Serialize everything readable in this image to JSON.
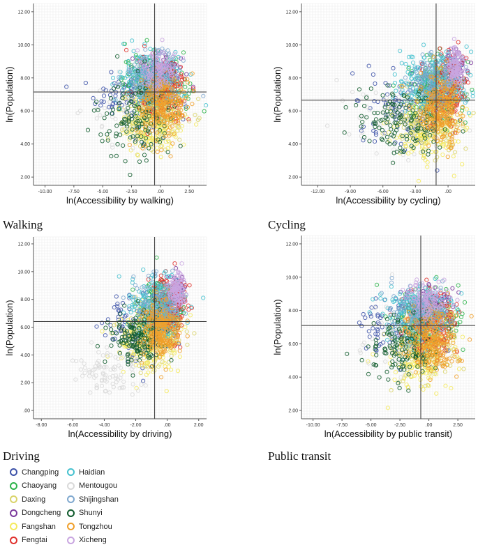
{
  "panels": [
    {
      "caption": "Walking"
    },
    {
      "caption": "Cycling"
    },
    {
      "caption": "Driving"
    },
    {
      "caption": "Public transit"
    }
  ],
  "legend": {
    "title": "",
    "items": [
      {
        "label": "Changping",
        "color": "#3d52a8"
      },
      {
        "label": "Chaoyang",
        "color": "#2db34a"
      },
      {
        "label": "Daxing",
        "color": "#d9d46b"
      },
      {
        "label": "Dongcheng",
        "color": "#7b3a9c"
      },
      {
        "label": "Fangshan",
        "color": "#f5ea5e"
      },
      {
        "label": "Fengtai",
        "color": "#e0312d"
      },
      {
        "label": "Haidian",
        "color": "#45c1cf"
      },
      {
        "label": "Mentougou",
        "color": "#d9d9d9"
      },
      {
        "label": "Shijingshan",
        "color": "#7fa8cf"
      },
      {
        "label": "Shunyi",
        "color": "#0f5a2c"
      },
      {
        "label": "Tongzhou",
        "color": "#f0a02c"
      },
      {
        "label": "Xicheng",
        "color": "#c9a6e0"
      }
    ]
  },
  "chart_data": [
    {
      "type": "scatter",
      "title": "",
      "xlabel": "ln(Accessibility by walking)",
      "ylabel": "ln(Population)",
      "xlim": [
        -11,
        4
      ],
      "ylim": [
        1.5,
        12.5
      ],
      "xticks": [
        -10,
        -7.5,
        -5,
        -2.5,
        0,
        2.5
      ],
      "xtick_labels": [
        "-10.00",
        "-7.50",
        "-5.00",
        "-2.50",
        ".00",
        "2.50"
      ],
      "yticks": [
        2,
        4,
        6,
        8,
        10,
        12
      ],
      "ytick_labels": [
        "2.00",
        "4.00",
        "6.00",
        "8.00",
        "10.00",
        "12.00"
      ],
      "grid": true,
      "reference_lines": {
        "x": -0.5,
        "y": 7.15
      },
      "series": [
        {
          "name": "Changping",
          "cloud": {
            "cx": -2.2,
            "cy": 7.1,
            "sx": 1.7,
            "sy": 1.0,
            "n": 130
          }
        },
        {
          "name": "Chaoyang",
          "cloud": {
            "cx": -0.4,
            "cy": 7.6,
            "sx": 1.4,
            "sy": 0.9,
            "n": 200
          }
        },
        {
          "name": "Daxing",
          "cloud": {
            "cx": -0.5,
            "cy": 5.6,
            "sx": 1.4,
            "sy": 1.0,
            "n": 160
          }
        },
        {
          "name": "Dongcheng",
          "cloud": {
            "cx": 0.2,
            "cy": 8.5,
            "sx": 0.9,
            "sy": 0.5,
            "n": 90
          }
        },
        {
          "name": "Fangshan",
          "cloud": {
            "cx": -0.6,
            "cy": 5.3,
            "sx": 1.4,
            "sy": 1.0,
            "n": 160
          }
        },
        {
          "name": "Fengtai",
          "cloud": {
            "cx": 0.2,
            "cy": 7.3,
            "sx": 1.0,
            "sy": 0.9,
            "n": 180
          }
        },
        {
          "name": "Haidian",
          "cloud": {
            "cx": -0.8,
            "cy": 7.9,
            "sx": 1.4,
            "sy": 0.9,
            "n": 220
          }
        },
        {
          "name": "Mentougou",
          "cloud": {
            "cx": -2.6,
            "cy": 6.2,
            "sx": 2.0,
            "sy": 1.1,
            "n": 60
          }
        },
        {
          "name": "Shijingshan",
          "cloud": {
            "cx": -0.6,
            "cy": 8.0,
            "sx": 1.2,
            "sy": 0.8,
            "n": 130
          }
        },
        {
          "name": "Shunyi",
          "cloud": {
            "cx": -2.0,
            "cy": 5.7,
            "sx": 1.6,
            "sy": 1.1,
            "n": 130
          }
        },
        {
          "name": "Tongzhou",
          "cloud": {
            "cx": 0.3,
            "cy": 6.3,
            "sx": 1.0,
            "sy": 1.0,
            "n": 240
          }
        },
        {
          "name": "Xicheng",
          "cloud": {
            "cx": -0.1,
            "cy": 8.6,
            "sx": 0.8,
            "sy": 0.6,
            "n": 110
          }
        }
      ]
    },
    {
      "type": "scatter",
      "title": "",
      "xlabel": "ln(Accessibility by cycling)",
      "ylabel": "ln(Population)",
      "xlim": [
        -13.5,
        2.5
      ],
      "ylim": [
        1.5,
        12.5
      ],
      "xticks": [
        -12,
        -9,
        -6,
        -3,
        0
      ],
      "xtick_labels": [
        "-12.00",
        "-9.00",
        "-6.00",
        "-3.00",
        ".00"
      ],
      "yticks": [
        2,
        4,
        6,
        8,
        10,
        12
      ],
      "ytick_labels": [
        "2.00",
        "4.00",
        "6.00",
        "8.00",
        "10.00",
        "12.00"
      ],
      "grid": true,
      "reference_lines": {
        "x": -1.1,
        "y": 6.65
      },
      "series": [
        {
          "name": "Changping",
          "cloud": {
            "cx": -3.5,
            "cy": 6.3,
            "sx": 2.0,
            "sy": 1.1,
            "n": 130
          }
        },
        {
          "name": "Chaoyang",
          "cloud": {
            "cx": -1.0,
            "cy": 7.4,
            "sx": 1.3,
            "sy": 1.0,
            "n": 200
          }
        },
        {
          "name": "Daxing",
          "cloud": {
            "cx": -1.5,
            "cy": 5.3,
            "sx": 1.6,
            "sy": 1.0,
            "n": 160
          }
        },
        {
          "name": "Dongcheng",
          "cloud": {
            "cx": 0.6,
            "cy": 8.6,
            "sx": 0.4,
            "sy": 0.5,
            "n": 90
          }
        },
        {
          "name": "Fangshan",
          "cloud": {
            "cx": -1.8,
            "cy": 5.0,
            "sx": 1.7,
            "sy": 1.0,
            "n": 160
          }
        },
        {
          "name": "Fengtai",
          "cloud": {
            "cx": -0.2,
            "cy": 7.5,
            "sx": 0.9,
            "sy": 1.0,
            "n": 180
          }
        },
        {
          "name": "Haidian",
          "cloud": {
            "cx": -1.4,
            "cy": 7.6,
            "sx": 1.6,
            "sy": 1.0,
            "n": 220
          }
        },
        {
          "name": "Mentougou",
          "cloud": {
            "cx": -5.0,
            "cy": 5.8,
            "sx": 2.5,
            "sy": 1.2,
            "n": 60
          }
        },
        {
          "name": "Shijingshan",
          "cloud": {
            "cx": -1.2,
            "cy": 7.8,
            "sx": 1.3,
            "sy": 0.9,
            "n": 130
          }
        },
        {
          "name": "Shunyi",
          "cloud": {
            "cx": -4.2,
            "cy": 5.3,
            "sx": 2.0,
            "sy": 1.1,
            "n": 140
          }
        },
        {
          "name": "Tongzhou",
          "cloud": {
            "cx": -0.6,
            "cy": 6.2,
            "sx": 1.1,
            "sy": 1.1,
            "n": 240
          }
        },
        {
          "name": "Xicheng",
          "cloud": {
            "cx": 0.7,
            "cy": 8.7,
            "sx": 0.35,
            "sy": 0.6,
            "n": 110
          }
        }
      ]
    },
    {
      "type": "scatter",
      "title": "",
      "xlabel": "ln(Accessibility by driving)",
      "ylabel": "ln(Population)",
      "xlim": [
        -8.5,
        2.5
      ],
      "ylim": [
        -0.6,
        12.5
      ],
      "xticks": [
        -8,
        -6,
        -4,
        -2,
        0,
        2
      ],
      "xtick_labels": [
        "-8.00",
        "-6.00",
        "-4.00",
        "-2.00",
        ".00",
        "2.00"
      ],
      "yticks": [
        0,
        2,
        4,
        6,
        8,
        10,
        12
      ],
      "ytick_labels": [
        ".00",
        "2.00",
        "4.00",
        "6.00",
        "8.00",
        "10.00",
        "12.00"
      ],
      "grid": true,
      "reference_lines": {
        "x": -0.8,
        "y": 6.4
      },
      "series": [
        {
          "name": "Changping",
          "cloud": {
            "cx": -1.8,
            "cy": 6.0,
            "sx": 1.0,
            "sy": 1.2,
            "n": 130
          }
        },
        {
          "name": "Chaoyang",
          "cloud": {
            "cx": -0.3,
            "cy": 7.2,
            "sx": 0.7,
            "sy": 1.1,
            "n": 200
          }
        },
        {
          "name": "Daxing",
          "cloud": {
            "cx": -0.9,
            "cy": 5.4,
            "sx": 0.9,
            "sy": 1.1,
            "n": 160
          }
        },
        {
          "name": "Dongcheng",
          "cloud": {
            "cx": 0.6,
            "cy": 8.6,
            "sx": 0.25,
            "sy": 0.5,
            "n": 90
          }
        },
        {
          "name": "Fangshan",
          "cloud": {
            "cx": -1.3,
            "cy": 5.0,
            "sx": 1.0,
            "sy": 1.2,
            "n": 160
          }
        },
        {
          "name": "Fengtai",
          "cloud": {
            "cx": 0.2,
            "cy": 7.5,
            "sx": 0.5,
            "sy": 1.1,
            "n": 180
          }
        },
        {
          "name": "Haidian",
          "cloud": {
            "cx": -0.7,
            "cy": 7.3,
            "sx": 0.9,
            "sy": 1.1,
            "n": 220
          }
        },
        {
          "name": "Mentougou",
          "cloud": {
            "cx": -3.6,
            "cy": 2.8,
            "sx": 1.0,
            "sy": 1.0,
            "n": 90
          }
        },
        {
          "name": "Shijingshan",
          "cloud": {
            "cx": -0.6,
            "cy": 7.6,
            "sx": 0.7,
            "sy": 1.0,
            "n": 130
          }
        },
        {
          "name": "Shunyi",
          "cloud": {
            "cx": -1.9,
            "cy": 5.1,
            "sx": 0.9,
            "sy": 1.0,
            "n": 150
          }
        },
        {
          "name": "Tongzhou",
          "cloud": {
            "cx": -0.4,
            "cy": 5.8,
            "sx": 0.6,
            "sy": 1.0,
            "n": 240
          }
        },
        {
          "name": "Xicheng",
          "cloud": {
            "cx": 0.6,
            "cy": 8.7,
            "sx": 0.25,
            "sy": 0.6,
            "n": 110
          }
        }
      ]
    },
    {
      "type": "scatter",
      "title": "",
      "xlabel": "ln(Accessibility by public transit)",
      "ylabel": "ln(Population)",
      "xlim": [
        -11,
        4
      ],
      "ylim": [
        1.5,
        12.5
      ],
      "xticks": [
        -10,
        -7.5,
        -5,
        -2.5,
        0,
        2.5
      ],
      "xtick_labels": [
        "-10.00",
        "-7.50",
        "-5.00",
        "-2.50",
        ".00",
        "2.50"
      ],
      "yticks": [
        2,
        4,
        6,
        8,
        10,
        12
      ],
      "ytick_labels": [
        "2.00",
        "4.00",
        "6.00",
        "8.00",
        "10.00",
        "12.00"
      ],
      "grid": true,
      "reference_lines": {
        "x": -0.7,
        "y": 7.1
      },
      "series": [
        {
          "name": "Changping",
          "cloud": {
            "cx": -2.3,
            "cy": 7.0,
            "sx": 1.7,
            "sy": 1.0,
            "n": 130
          }
        },
        {
          "name": "Chaoyang",
          "cloud": {
            "cx": -0.2,
            "cy": 7.6,
            "sx": 1.5,
            "sy": 0.9,
            "n": 200
          }
        },
        {
          "name": "Daxing",
          "cloud": {
            "cx": -0.6,
            "cy": 5.6,
            "sx": 1.4,
            "sy": 1.0,
            "n": 160
          }
        },
        {
          "name": "Dongcheng",
          "cloud": {
            "cx": 0.3,
            "cy": 8.4,
            "sx": 0.9,
            "sy": 0.5,
            "n": 90
          }
        },
        {
          "name": "Fangshan",
          "cloud": {
            "cx": -0.8,
            "cy": 5.3,
            "sx": 1.4,
            "sy": 1.0,
            "n": 160
          }
        },
        {
          "name": "Fengtai",
          "cloud": {
            "cx": 0.2,
            "cy": 7.4,
            "sx": 1.1,
            "sy": 0.9,
            "n": 180
          }
        },
        {
          "name": "Haidian",
          "cloud": {
            "cx": -0.9,
            "cy": 7.8,
            "sx": 1.5,
            "sy": 0.9,
            "n": 220
          }
        },
        {
          "name": "Mentougou",
          "cloud": {
            "cx": -2.7,
            "cy": 6.1,
            "sx": 2.0,
            "sy": 1.1,
            "n": 60
          }
        },
        {
          "name": "Shijingshan",
          "cloud": {
            "cx": -0.7,
            "cy": 7.9,
            "sx": 1.2,
            "sy": 0.8,
            "n": 130
          }
        },
        {
          "name": "Shunyi",
          "cloud": {
            "cx": -2.1,
            "cy": 5.6,
            "sx": 1.6,
            "sy": 1.1,
            "n": 130
          }
        },
        {
          "name": "Tongzhou",
          "cloud": {
            "cx": 0.3,
            "cy": 6.2,
            "sx": 1.1,
            "sy": 1.0,
            "n": 240
          }
        },
        {
          "name": "Xicheng",
          "cloud": {
            "cx": 0.0,
            "cy": 8.6,
            "sx": 0.8,
            "sy": 0.6,
            "n": 110
          }
        }
      ]
    }
  ]
}
